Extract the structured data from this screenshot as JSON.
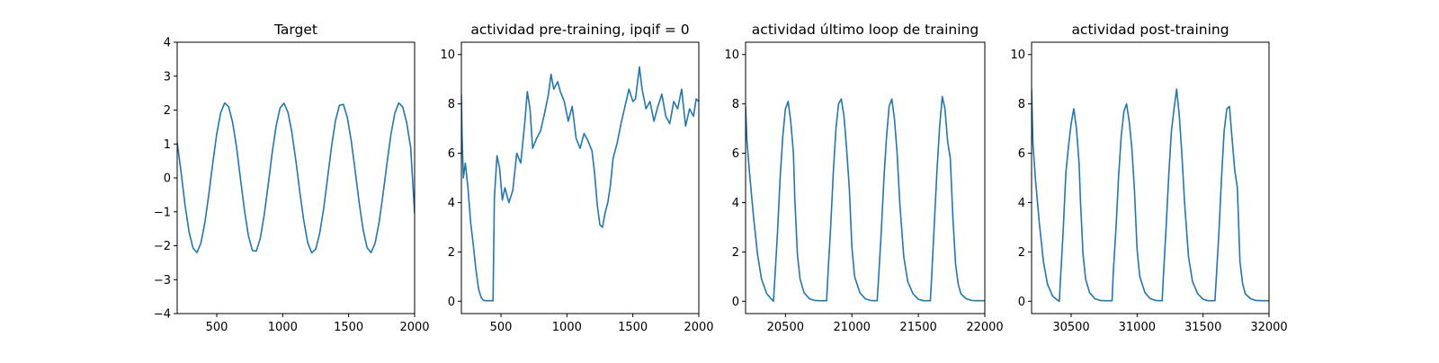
{
  "chart_data": [
    {
      "type": "line",
      "title": "Target",
      "xlabel": "",
      "ylabel": "",
      "xlim": [
        200,
        2000
      ],
      "ylim": [
        -4,
        4
      ],
      "xticks": [
        500,
        1000,
        1500,
        2000
      ],
      "yticks": [
        -4,
        -3,
        -2,
        -1,
        0,
        1,
        2,
        3,
        4
      ],
      "grid": false,
      "series": [
        {
          "color": "#1f77b4",
          "x": [
            200,
            230,
            260,
            290,
            320,
            350,
            380,
            410,
            440,
            470,
            500,
            530,
            560,
            590,
            620,
            650,
            680,
            710,
            740,
            770,
            800,
            830,
            860,
            890,
            920,
            950,
            980,
            1010,
            1040,
            1070,
            1100,
            1130,
            1160,
            1190,
            1220,
            1250,
            1280,
            1310,
            1340,
            1370,
            1400,
            1430,
            1460,
            1490,
            1520,
            1550,
            1580,
            1610,
            1640,
            1670,
            1700,
            1730,
            1760,
            1790,
            1820,
            1850,
            1880,
            1910,
            1940,
            1970,
            2000
          ],
          "y": [
            1.05,
            0.15,
            -0.81,
            -1.59,
            -2.07,
            -2.2,
            -1.92,
            -1.32,
            -0.48,
            0.44,
            1.3,
            1.92,
            2.21,
            2.1,
            1.64,
            0.91,
            -0.03,
            -0.95,
            -1.7,
            -2.14,
            -2.16,
            -1.78,
            -1.09,
            -0.2,
            0.73,
            1.53,
            2.06,
            2.2,
            1.93,
            1.33,
            0.5,
            -0.42,
            -1.27,
            -1.91,
            -2.21,
            -2.1,
            -1.64,
            -0.92,
            -0.01,
            0.92,
            1.69,
            2.14,
            2.17,
            1.78,
            1.08,
            0.19,
            -0.74,
            -1.54,
            -2.06,
            -2.2,
            -1.93,
            -1.33,
            -0.5,
            0.41,
            1.27,
            1.91,
            2.21,
            2.09,
            1.63,
            0.9,
            -1.05
          ]
        }
      ]
    },
    {
      "type": "line",
      "title": "actividad pre-training, ipqif = 0",
      "xlabel": "",
      "ylabel": "",
      "xlim": [
        200,
        2000
      ],
      "ylim": [
        -0.5,
        10.5
      ],
      "xticks": [
        500,
        1000,
        1500,
        2000
      ],
      "yticks": [
        0,
        2,
        4,
        6,
        8,
        10
      ],
      "grid": false,
      "series": [
        {
          "color": "#1f77b4",
          "x": [
            200,
            205,
            215,
            230,
            250,
            270,
            290,
            310,
            330,
            350,
            370,
            390,
            420,
            440,
            450,
            470,
            490,
            510,
            530,
            560,
            590,
            620,
            650,
            680,
            700,
            720,
            740,
            770,
            800,
            830,
            860,
            880,
            900,
            930,
            950,
            980,
            1010,
            1040,
            1070,
            1100,
            1130,
            1160,
            1190,
            1210,
            1230,
            1250,
            1270,
            1290,
            1310,
            1330,
            1350,
            1380,
            1410,
            1440,
            1470,
            1500,
            1520,
            1550,
            1570,
            1600,
            1630,
            1660,
            1690,
            1720,
            1750,
            1780,
            1810,
            1840,
            1870,
            1900,
            1930,
            1960,
            1980,
            2000
          ],
          "y": [
            8.4,
            6.8,
            5.0,
            5.6,
            4.6,
            3.2,
            2.3,
            1.3,
            0.5,
            0.15,
            0.03,
            0.02,
            0.02,
            0.02,
            4.2,
            5.9,
            5.4,
            4.1,
            4.6,
            4.0,
            4.5,
            6.0,
            5.6,
            7.2,
            8.5,
            7.8,
            6.2,
            6.6,
            6.9,
            7.6,
            8.4,
            9.2,
            8.6,
            8.9,
            8.5,
            8.1,
            7.3,
            7.9,
            6.6,
            6.2,
            6.8,
            6.5,
            6.1,
            5.2,
            3.9,
            3.1,
            3.0,
            3.6,
            4.0,
            4.7,
            5.8,
            6.4,
            7.2,
            7.9,
            8.6,
            8.1,
            8.2,
            9.5,
            8.6,
            7.8,
            8.1,
            7.3,
            7.9,
            8.4,
            7.5,
            7.2,
            8.1,
            7.8,
            8.6,
            7.1,
            7.8,
            7.5,
            8.2,
            8.1
          ]
        }
      ]
    },
    {
      "type": "line",
      "title": "actividad último loop de training",
      "xlabel": "",
      "ylabel": "",
      "xlim": [
        20200,
        22000
      ],
      "ylim": [
        -0.5,
        10.5
      ],
      "xticks": [
        20500,
        21000,
        21500,
        22000
      ],
      "yticks": [
        0,
        2,
        4,
        6,
        8,
        10
      ],
      "grid": false,
      "series": [
        {
          "color": "#1f77b4",
          "x": [
            20200,
            20210,
            20230,
            20260,
            20290,
            20320,
            20360,
            20400,
            20410,
            20420,
            20440,
            20460,
            20480,
            20500,
            20520,
            20540,
            20560,
            20570,
            20590,
            20610,
            20640,
            20680,
            20720,
            20760,
            20800,
            20810,
            20820,
            20840,
            20860,
            20880,
            20900,
            20920,
            20940,
            20960,
            20980,
            21000,
            21020,
            21060,
            21100,
            21140,
            21180,
            21190,
            21200,
            21220,
            21240,
            21260,
            21280,
            21300,
            21320,
            21340,
            21360,
            21390,
            21420,
            21460,
            21500,
            21540,
            21580,
            21590,
            21600,
            21620,
            21640,
            21660,
            21680,
            21700,
            21720,
            21740,
            21760,
            21780,
            21800,
            21820,
            21860,
            21900,
            21950,
            22000
          ],
          "y": [
            7.9,
            6.5,
            5.2,
            3.4,
            1.9,
            0.9,
            0.3,
            0.05,
            0.0,
            0.9,
            2.8,
            5.0,
            6.7,
            7.8,
            8.1,
            7.3,
            6.0,
            4.2,
            1.9,
            0.9,
            0.35,
            0.1,
            0.03,
            0.02,
            0.02,
            0.02,
            1.1,
            3.0,
            5.2,
            7.0,
            8.0,
            8.2,
            7.5,
            6.2,
            4.6,
            2.2,
            1.0,
            0.35,
            0.1,
            0.03,
            0.02,
            0.02,
            0.9,
            2.7,
            4.9,
            6.6,
            7.9,
            8.2,
            7.4,
            6.0,
            4.0,
            1.8,
            0.8,
            0.3,
            0.08,
            0.02,
            0.02,
            0.02,
            1.0,
            3.1,
            5.3,
            7.1,
            8.3,
            7.8,
            6.5,
            5.8,
            3.4,
            1.5,
            0.7,
            0.3,
            0.1,
            0.03,
            0.02,
            0.02
          ]
        }
      ]
    },
    {
      "type": "line",
      "title": "actividad post-training",
      "xlabel": "",
      "ylabel": "",
      "xlim": [
        30200,
        32000
      ],
      "ylim": [
        -0.5,
        10.5
      ],
      "xticks": [
        30500,
        31000,
        31500,
        32000
      ],
      "yticks": [
        0,
        2,
        4,
        6,
        8,
        10
      ],
      "grid": false,
      "series": [
        {
          "color": "#1f77b4",
          "x": [
            30200,
            30210,
            30230,
            30260,
            30290,
            30320,
            30360,
            30400,
            30410,
            30420,
            30440,
            30460,
            30480,
            30500,
            30520,
            30540,
            30560,
            30570,
            30590,
            30610,
            30640,
            30680,
            30720,
            30760,
            30800,
            30810,
            30820,
            30840,
            30860,
            30880,
            30900,
            30920,
            30940,
            30960,
            30980,
            31000,
            31020,
            31060,
            31100,
            31140,
            31180,
            31190,
            31200,
            31220,
            31240,
            31260,
            31280,
            31300,
            31320,
            31340,
            31360,
            31390,
            31420,
            31460,
            31500,
            31540,
            31580,
            31590,
            31600,
            31620,
            31640,
            31660,
            31680,
            31700,
            31720,
            31740,
            31760,
            31780,
            31800,
            31820,
            31860,
            31900,
            31950,
            32000
          ],
          "y": [
            8.6,
            6.4,
            4.9,
            3.1,
            1.6,
            0.7,
            0.2,
            0.03,
            0.0,
            1.0,
            2.9,
            5.2,
            6.3,
            7.2,
            7.8,
            7.0,
            5.6,
            4.1,
            1.9,
            0.9,
            0.35,
            0.1,
            0.03,
            0.02,
            0.02,
            0.02,
            1.2,
            3.0,
            5.1,
            6.7,
            7.7,
            8.0,
            7.3,
            6.2,
            4.5,
            2.1,
            1.0,
            0.35,
            0.1,
            0.03,
            0.02,
            0.02,
            1.1,
            3.0,
            5.1,
            6.9,
            7.8,
            8.6,
            7.5,
            5.9,
            4.0,
            1.8,
            0.8,
            0.3,
            0.08,
            0.02,
            0.02,
            0.02,
            0.9,
            2.8,
            5.0,
            6.9,
            7.8,
            7.9,
            6.6,
            5.3,
            4.6,
            1.6,
            0.7,
            0.3,
            0.1,
            0.03,
            0.02,
            0.02
          ]
        }
      ]
    }
  ]
}
